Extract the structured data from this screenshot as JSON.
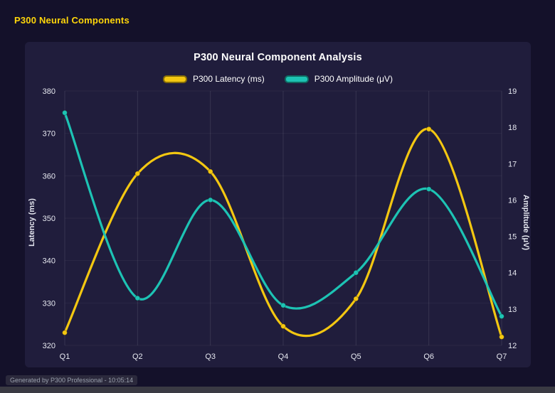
{
  "page": {
    "header_title": "P300 Neural Components",
    "footer_note": "Generated by P300 Professional - 10:05:14"
  },
  "chart_data": {
    "type": "line",
    "title": "P300 Neural Component Analysis",
    "categories": [
      "Q1",
      "Q2",
      "Q3",
      "Q4",
      "Q5",
      "Q6",
      "Q7"
    ],
    "series": [
      {
        "name": "P300 Latency (ms)",
        "axis": "left",
        "color": "#f3c711",
        "values": [
          323,
          360.5,
          361,
          324.5,
          331,
          371,
          322
        ]
      },
      {
        "name": "P300 Amplitude (μV)",
        "axis": "right",
        "color": "#1dc3b4",
        "values": [
          18.4,
          13.3,
          16.0,
          13.1,
          14.0,
          16.3,
          12.8
        ]
      }
    ],
    "y_left": {
      "label": "Latency (ms)",
      "min": 320,
      "max": 380,
      "step": 10
    },
    "y_right": {
      "label": "Amplitude (μV)",
      "min": 12,
      "max": 19,
      "step": 1
    },
    "grid": "vertical-faint",
    "legend_position": "top",
    "line_style": "smooth",
    "background": "#201d3c"
  }
}
